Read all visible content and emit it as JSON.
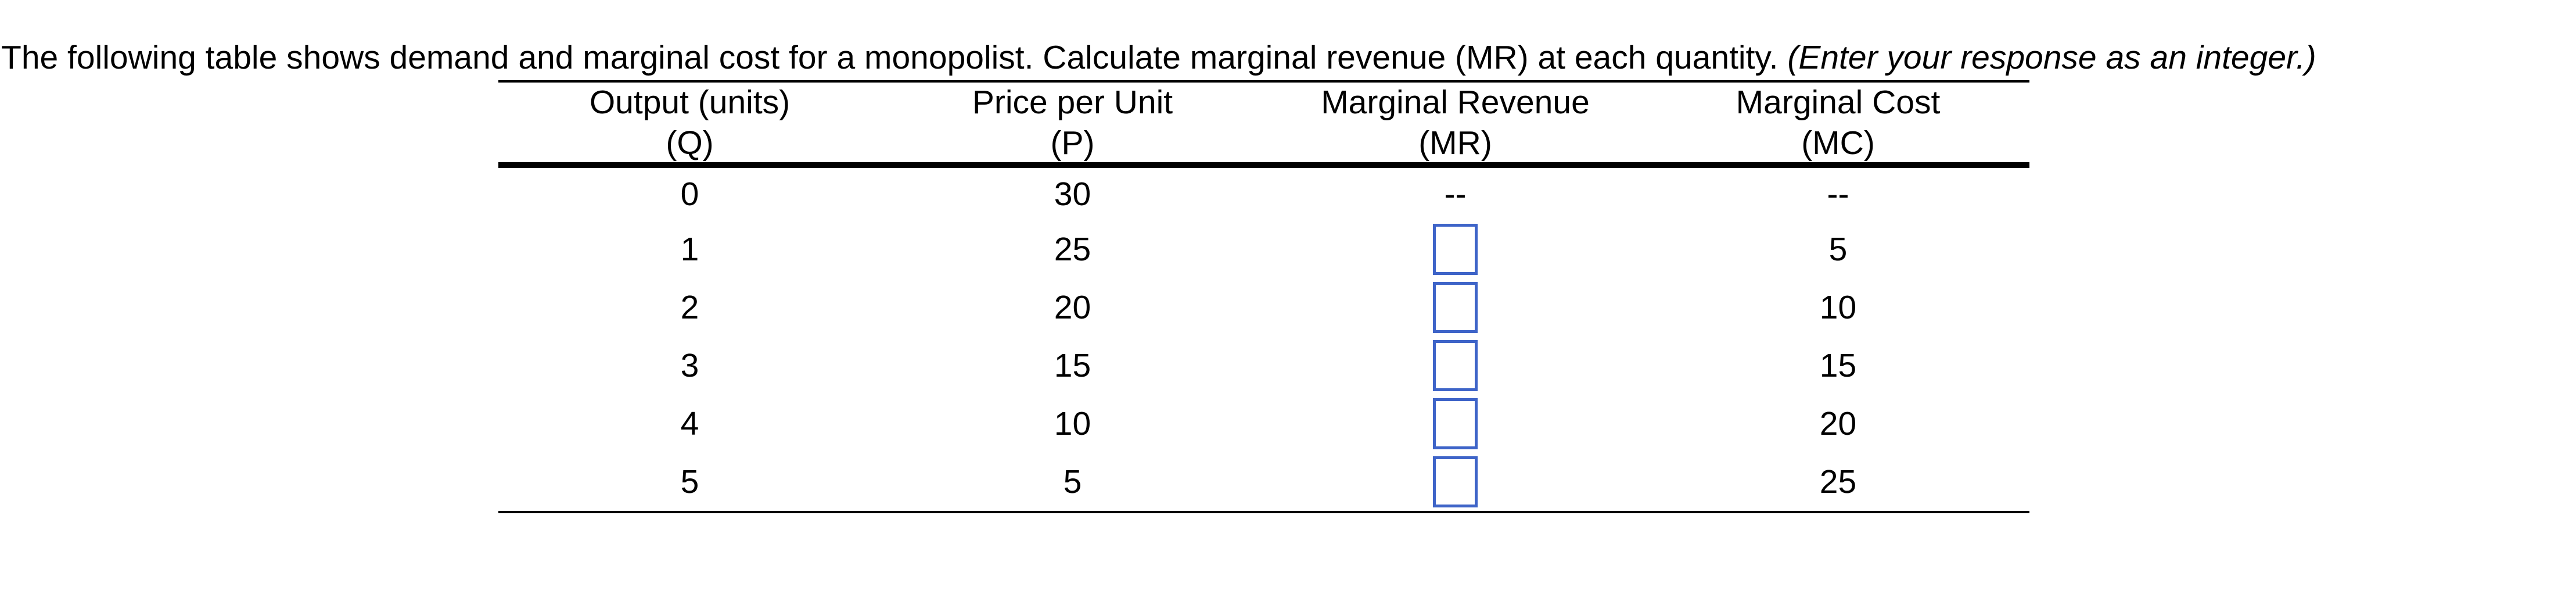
{
  "question": {
    "text": "The following table shows demand and marginal cost for a monopolist. Calculate marginal revenue (MR) at each quantity. ",
    "note": "(Enter your response as an integer.)"
  },
  "table": {
    "columns": [
      {
        "line1": "Output (units)",
        "line2": "(Q)"
      },
      {
        "line1": "Price per Unit",
        "line2": "(P)"
      },
      {
        "line1": "Marginal Revenue",
        "line2": "(MR)"
      },
      {
        "line1": "Marginal Cost",
        "line2": "(MC)"
      }
    ],
    "rows": [
      {
        "q": "0",
        "p": "30",
        "mr": "--",
        "mc": "--"
      },
      {
        "q": "1",
        "p": "25",
        "mr": "",
        "mc": "5"
      },
      {
        "q": "2",
        "p": "20",
        "mr": "",
        "mc": "10"
      },
      {
        "q": "3",
        "p": "15",
        "mr": "",
        "mc": "15"
      },
      {
        "q": "4",
        "p": "10",
        "mr": "",
        "mc": "20"
      },
      {
        "q": "5",
        "p": "5",
        "mr": "",
        "mc": "25"
      }
    ],
    "input_values": [
      "",
      "",
      "",
      "",
      ""
    ],
    "colors": {
      "input_border": "#3E64C8",
      "rule": "#000000",
      "text": "#000000",
      "background": "#FFFFFF"
    }
  }
}
